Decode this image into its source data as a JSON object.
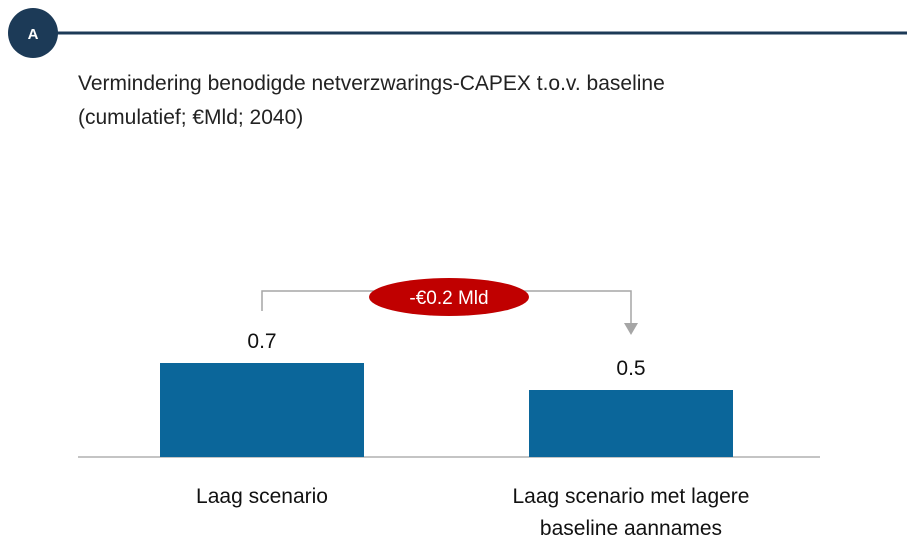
{
  "badge": "A",
  "chart_data": {
    "type": "bar",
    "title": "Vermindering benodigde netverzwarings-CAPEX t.o.v. baseline",
    "subtitle": "(cumulatief; €Mld; 2040)",
    "categories": [
      "Laag scenario",
      "Laag scenario met lagere baseline aannames"
    ],
    "values": [
      0.7,
      0.5
    ],
    "color": "#0b669a",
    "annotation": "-€0.2 Mld"
  }
}
